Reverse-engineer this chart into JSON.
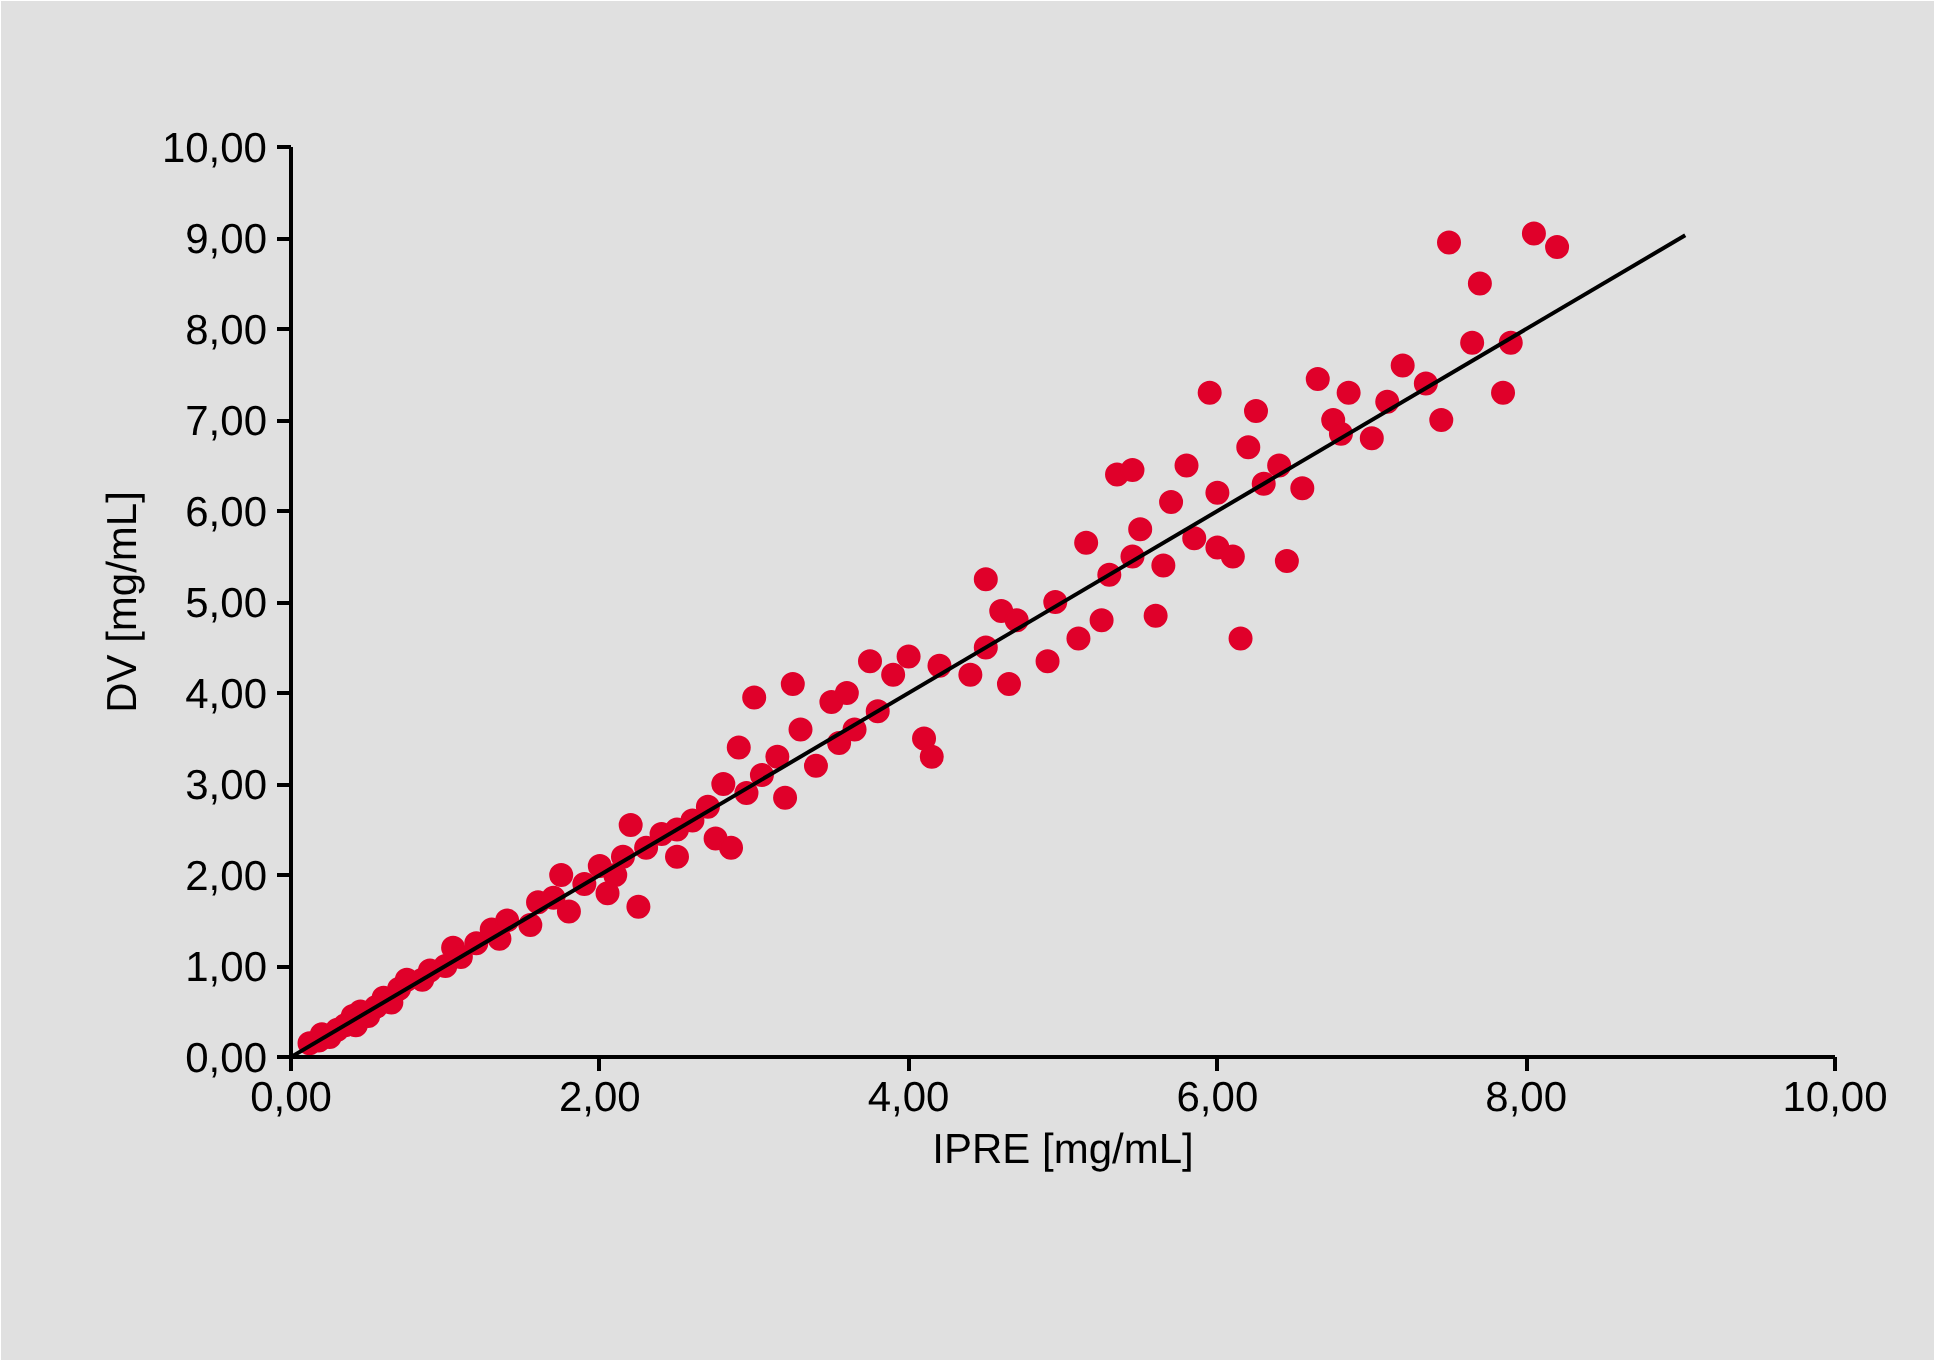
{
  "chart_data": {
    "type": "scatter",
    "xlabel": "IPRE [mg/mL]",
    "ylabel": "DV [mg/mL]",
    "xlim": [
      0,
      10
    ],
    "ylim": [
      0,
      10
    ],
    "xticks": [
      {
        "value": 0,
        "label": "0,00"
      },
      {
        "value": 2,
        "label": "2,00"
      },
      {
        "value": 4,
        "label": "4,00"
      },
      {
        "value": 6,
        "label": "6,00"
      },
      {
        "value": 8,
        "label": "8,00"
      },
      {
        "value": 10,
        "label": "10,00"
      }
    ],
    "yticks": [
      {
        "value": 0,
        "label": "0,00"
      },
      {
        "value": 1,
        "label": "1,00"
      },
      {
        "value": 2,
        "label": "2,00"
      },
      {
        "value": 3,
        "label": "3,00"
      },
      {
        "value": 4,
        "label": "4,00"
      },
      {
        "value": 5,
        "label": "5,00"
      },
      {
        "value": 6,
        "label": "6,00"
      },
      {
        "value": 7,
        "label": "7,00"
      },
      {
        "value": 8,
        "label": "8,00"
      },
      {
        "value": 9,
        "label": "9,00"
      },
      {
        "value": 10,
        "label": "10,00"
      }
    ],
    "marker": "circle",
    "series": [
      {
        "color": "#e0002a",
        "x": [
          0.12,
          0.18,
          0.2,
          0.25,
          0.3,
          0.35,
          0.4,
          0.42,
          0.45,
          0.5,
          0.55,
          0.6,
          0.65,
          0.7,
          0.75,
          0.85,
          0.9,
          1.0,
          1.05,
          1.1,
          1.2,
          1.3,
          1.35,
          1.4,
          1.55,
          1.6,
          1.7,
          1.75,
          1.8,
          1.9,
          2.0,
          2.05,
          2.1,
          2.15,
          2.2,
          2.25,
          2.3,
          2.4,
          2.5,
          2.5,
          2.6,
          2.7,
          2.75,
          2.8,
          2.85,
          2.9,
          2.95,
          3.0,
          3.05,
          3.15,
          3.2,
          3.25,
          3.3,
          3.4,
          3.5,
          3.55,
          3.6,
          3.65,
          3.75,
          3.8,
          3.9,
          4.0,
          4.1,
          4.15,
          4.2,
          4.4,
          4.5,
          4.5,
          4.6,
          4.65,
          4.7,
          4.9,
          4.95,
          5.1,
          5.15,
          5.25,
          5.3,
          5.35,
          5.45,
          5.45,
          5.5,
          5.6,
          5.65,
          5.7,
          5.8,
          5.85,
          5.95,
          6.0,
          6.0,
          6.1,
          6.15,
          6.2,
          6.25,
          6.3,
          6.4,
          6.45,
          6.55,
          6.65,
          6.75,
          6.8,
          6.85,
          7.0,
          7.1,
          7.2,
          7.35,
          7.45,
          7.5,
          7.65,
          7.7,
          7.85,
          7.9,
          8.05,
          8.2
        ],
        "values": [
          0.15,
          0.18,
          0.25,
          0.22,
          0.3,
          0.35,
          0.45,
          0.35,
          0.5,
          0.45,
          0.55,
          0.65,
          0.6,
          0.75,
          0.85,
          0.85,
          0.95,
          1.0,
          1.2,
          1.1,
          1.25,
          1.4,
          1.3,
          1.5,
          1.45,
          1.7,
          1.75,
          2.0,
          1.6,
          1.9,
          2.1,
          1.8,
          2.0,
          2.2,
          2.55,
          1.65,
          2.3,
          2.45,
          2.5,
          2.2,
          2.6,
          2.75,
          2.4,
          3.0,
          2.3,
          3.4,
          2.9,
          3.95,
          3.1,
          3.3,
          2.85,
          4.1,
          3.6,
          3.2,
          3.9,
          3.45,
          4.0,
          3.6,
          4.35,
          3.8,
          4.2,
          4.4,
          3.5,
          3.3,
          4.3,
          4.2,
          5.25,
          4.5,
          4.9,
          4.1,
          4.8,
          4.35,
          5.0,
          4.6,
          5.65,
          4.8,
          5.3,
          6.4,
          6.45,
          5.5,
          5.8,
          4.85,
          5.4,
          6.1,
          6.5,
          5.7,
          7.3,
          6.2,
          5.6,
          5.5,
          4.6,
          6.7,
          7.1,
          6.3,
          6.5,
          5.45,
          6.25,
          7.45,
          7.0,
          6.85,
          7.3,
          6.8,
          7.2,
          7.6,
          7.4,
          7.0,
          8.95,
          7.85,
          8.5,
          7.3,
          7.85,
          9.05,
          8.9
        ]
      },
      {
        "type": "line",
        "marker": "none",
        "color": "#000000",
        "x": [
          0,
          9.03
        ],
        "values": [
          0,
          9.03
        ]
      }
    ]
  }
}
